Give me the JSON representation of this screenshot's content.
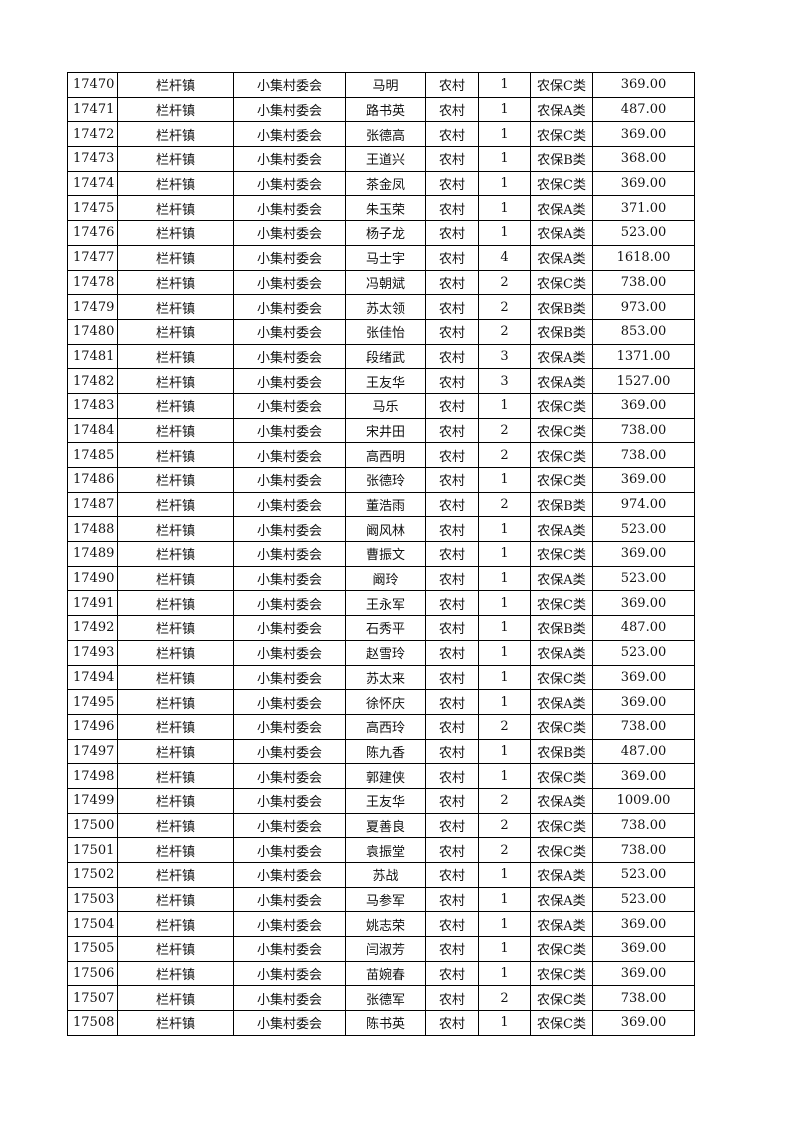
{
  "rows": [
    [
      "17470",
      "栏杆镇",
      "小集村委会",
      "马明",
      "农村",
      "1",
      "农保C类",
      "369.00"
    ],
    [
      "17471",
      "栏杆镇",
      "小集村委会",
      "路书英",
      "农村",
      "1",
      "农保A类",
      "487.00"
    ],
    [
      "17472",
      "栏杆镇",
      "小集村委会",
      "张德高",
      "农村",
      "1",
      "农保C类",
      "369.00"
    ],
    [
      "17473",
      "栏杆镇",
      "小集村委会",
      "王道兴",
      "农村",
      "1",
      "农保B类",
      "368.00"
    ],
    [
      "17474",
      "栏杆镇",
      "小集村委会",
      "茶金凤",
      "农村",
      "1",
      "农保C类",
      "369.00"
    ],
    [
      "17475",
      "栏杆镇",
      "小集村委会",
      "朱玉荣",
      "农村",
      "1",
      "农保A类",
      "371.00"
    ],
    [
      "17476",
      "栏杆镇",
      "小集村委会",
      "杨子龙",
      "农村",
      "1",
      "农保A类",
      "523.00"
    ],
    [
      "17477",
      "栏杆镇",
      "小集村委会",
      "马士宇",
      "农村",
      "4",
      "农保A类",
      "1618.00"
    ],
    [
      "17478",
      "栏杆镇",
      "小集村委会",
      "冯朝斌",
      "农村",
      "2",
      "农保C类",
      "738.00"
    ],
    [
      "17479",
      "栏杆镇",
      "小集村委会",
      "苏太领",
      "农村",
      "2",
      "农保B类",
      "973.00"
    ],
    [
      "17480",
      "栏杆镇",
      "小集村委会",
      "张佳怡",
      "农村",
      "2",
      "农保B类",
      "853.00"
    ],
    [
      "17481",
      "栏杆镇",
      "小集村委会",
      "段绪武",
      "农村",
      "3",
      "农保A类",
      "1371.00"
    ],
    [
      "17482",
      "栏杆镇",
      "小集村委会",
      "王友华",
      "农村",
      "3",
      "农保A类",
      "1527.00"
    ],
    [
      "17483",
      "栏杆镇",
      "小集村委会",
      "马乐",
      "农村",
      "1",
      "农保C类",
      "369.00"
    ],
    [
      "17484",
      "栏杆镇",
      "小集村委会",
      "宋井田",
      "农村",
      "2",
      "农保C类",
      "738.00"
    ],
    [
      "17485",
      "栏杆镇",
      "小集村委会",
      "高西明",
      "农村",
      "2",
      "农保C类",
      "738.00"
    ],
    [
      "17486",
      "栏杆镇",
      "小集村委会",
      "张德玲",
      "农村",
      "1",
      "农保C类",
      "369.00"
    ],
    [
      "17487",
      "栏杆镇",
      "小集村委会",
      "董浩雨",
      "农村",
      "2",
      "农保B类",
      "974.00"
    ],
    [
      "17488",
      "栏杆镇",
      "小集村委会",
      "阚风林",
      "农村",
      "1",
      "农保A类",
      "523.00"
    ],
    [
      "17489",
      "栏杆镇",
      "小集村委会",
      "曹振文",
      "农村",
      "1",
      "农保C类",
      "369.00"
    ],
    [
      "17490",
      "栏杆镇",
      "小集村委会",
      "阚玲",
      "农村",
      "1",
      "农保A类",
      "523.00"
    ],
    [
      "17491",
      "栏杆镇",
      "小集村委会",
      "王永军",
      "农村",
      "1",
      "农保C类",
      "369.00"
    ],
    [
      "17492",
      "栏杆镇",
      "小集村委会",
      "石秀平",
      "农村",
      "1",
      "农保B类",
      "487.00"
    ],
    [
      "17493",
      "栏杆镇",
      "小集村委会",
      "赵雪玲",
      "农村",
      "1",
      "农保A类",
      "523.00"
    ],
    [
      "17494",
      "栏杆镇",
      "小集村委会",
      "苏太来",
      "农村",
      "1",
      "农保C类",
      "369.00"
    ],
    [
      "17495",
      "栏杆镇",
      "小集村委会",
      "徐怀庆",
      "农村",
      "1",
      "农保A类",
      "369.00"
    ],
    [
      "17496",
      "栏杆镇",
      "小集村委会",
      "高西玲",
      "农村",
      "2",
      "农保C类",
      "738.00"
    ],
    [
      "17497",
      "栏杆镇",
      "小集村委会",
      "陈九香",
      "农村",
      "1",
      "农保B类",
      "487.00"
    ],
    [
      "17498",
      "栏杆镇",
      "小集村委会",
      "郭建侠",
      "农村",
      "1",
      "农保C类",
      "369.00"
    ],
    [
      "17499",
      "栏杆镇",
      "小集村委会",
      "王友华",
      "农村",
      "2",
      "农保A类",
      "1009.00"
    ],
    [
      "17500",
      "栏杆镇",
      "小集村委会",
      "夏善良",
      "农村",
      "2",
      "农保C类",
      "738.00"
    ],
    [
      "17501",
      "栏杆镇",
      "小集村委会",
      "袁振堂",
      "农村",
      "2",
      "农保C类",
      "738.00"
    ],
    [
      "17502",
      "栏杆镇",
      "小集村委会",
      "苏战",
      "农村",
      "1",
      "农保A类",
      "523.00"
    ],
    [
      "17503",
      "栏杆镇",
      "小集村委会",
      "马参军",
      "农村",
      "1",
      "农保A类",
      "523.00"
    ],
    [
      "17504",
      "栏杆镇",
      "小集村委会",
      "姚志荣",
      "农村",
      "1",
      "农保A类",
      "369.00"
    ],
    [
      "17505",
      "栏杆镇",
      "小集村委会",
      "闫淑芳",
      "农村",
      "1",
      "农保C类",
      "369.00"
    ],
    [
      "17506",
      "栏杆镇",
      "小集村委会",
      "苗婉春",
      "农村",
      "1",
      "农保C类",
      "369.00"
    ],
    [
      "17507",
      "栏杆镇",
      "小集村委会",
      "张德军",
      "农村",
      "2",
      "农保C类",
      "738.00"
    ],
    [
      "17508",
      "栏杆镇",
      "小集村委会",
      "陈书英",
      "农村",
      "1",
      "农保C类",
      "369.00"
    ]
  ]
}
